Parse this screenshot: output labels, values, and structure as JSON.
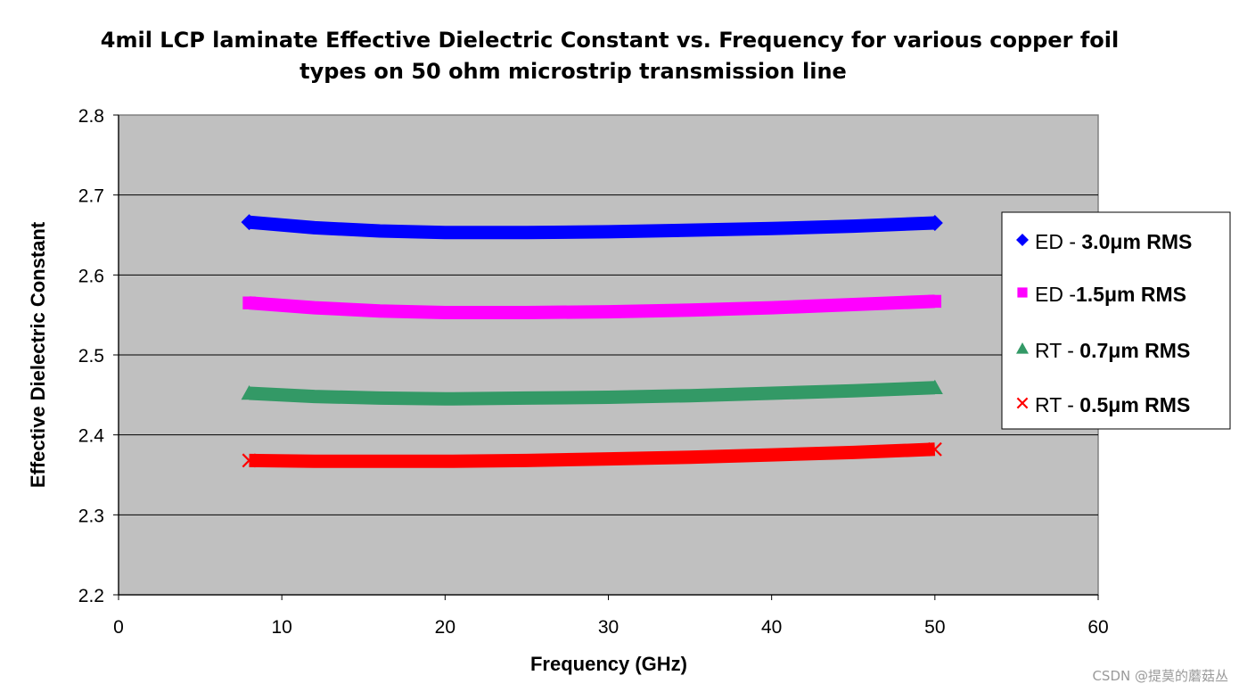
{
  "chart_data": {
    "type": "line",
    "title_line1": "4mil LCP laminate Effective Dielectric Constant vs. Frequency for various copper foil",
    "title_line2": "types on 50 ohm microstrip transmission line",
    "xlabel": "Frequency (GHz)",
    "ylabel": "Effective Dielectric Constant",
    "xlim": [
      0,
      60
    ],
    "ylim": [
      2.2,
      2.8
    ],
    "xticks": [
      "0",
      "10",
      "20",
      "30",
      "40",
      "50",
      "60"
    ],
    "yticks": [
      "2.2",
      "2.3",
      "2.4",
      "2.5",
      "2.6",
      "2.7",
      "2.8"
    ],
    "grid": "horizontal",
    "legend_position": "right",
    "x": [
      8,
      12,
      16,
      20,
      25,
      30,
      35,
      40,
      45,
      50
    ],
    "series": [
      {
        "name": "ED - 3.0μm RMS",
        "legend_prefix": "ED - ",
        "legend_value": "3.0",
        "legend_unit": "μm RMS",
        "marker": "diamond",
        "color": "#0000ff",
        "values": [
          2.666,
          2.659,
          2.655,
          2.653,
          2.653,
          2.654,
          2.656,
          2.658,
          2.661,
          2.665
        ]
      },
      {
        "name": "ED -1.5μm  RMS",
        "legend_prefix": "ED -",
        "legend_value": "1.5",
        "legend_unit": "μm  RMS",
        "marker": "square",
        "color": "#ff00ff",
        "values": [
          2.565,
          2.559,
          2.555,
          2.553,
          2.553,
          2.554,
          2.556,
          2.559,
          2.563,
          2.567
        ]
      },
      {
        "name": "RT - 0.7μm RMS",
        "legend_prefix": "RT - ",
        "legend_value": "0.7",
        "legend_unit": "μm RMS",
        "marker": "triangle",
        "color": "#339966",
        "values": [
          2.452,
          2.448,
          2.446,
          2.445,
          2.446,
          2.447,
          2.449,
          2.452,
          2.455,
          2.459
        ]
      },
      {
        "name": "RT - 0.5μm RMS",
        "legend_prefix": "RT - ",
        "legend_value": "0.5",
        "legend_unit": "μm RMS",
        "marker": "x",
        "color": "#ff0000",
        "values": [
          2.368,
          2.367,
          2.367,
          2.367,
          2.368,
          2.37,
          2.372,
          2.375,
          2.378,
          2.382
        ]
      }
    ]
  },
  "colors": {
    "plot_background": "#c0c0c0",
    "gridline": "#000000"
  },
  "watermark": "CSDN @提莫的蘑菇丛"
}
